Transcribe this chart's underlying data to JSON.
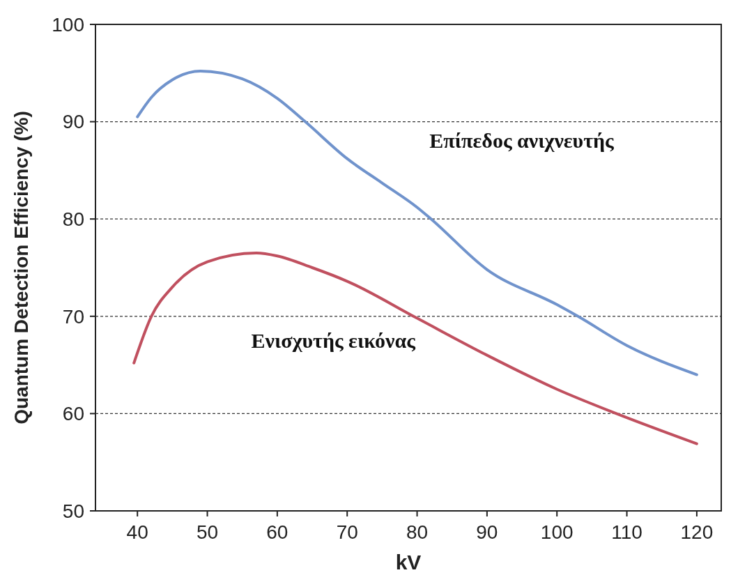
{
  "chart_data": {
    "type": "line",
    "xlabel": "kV",
    "ylabel": "Quantum Detection Efficiency (%)",
    "xlim": [
      34,
      123.5
    ],
    "ylim": [
      50,
      100
    ],
    "xticks": [
      40,
      50,
      60,
      70,
      80,
      90,
      100,
      110,
      120
    ],
    "yticks": [
      50,
      60,
      70,
      80,
      90,
      100
    ],
    "grid": "y",
    "marker": "none",
    "line_style": "solid",
    "series": [
      {
        "name": "Επίπεδος ανιχνευτής",
        "color": "#7093cc",
        "x": [
          40,
          42,
          45,
          49,
          55,
          60,
          64,
          70,
          75,
          80,
          82,
          90,
          100,
          103,
          110,
          120
        ],
        "values": [
          90.5,
          92.5,
          94.3,
          95.2,
          94.4,
          92.4,
          90,
          86.2,
          83.7,
          81.2,
          80,
          74.8,
          71.2,
          70,
          67,
          64
        ]
      },
      {
        "name": "Ενισχυτής εικόνας",
        "color": "#c0505f",
        "x": [
          39.5,
          42,
          45,
          50,
          57,
          60,
          65,
          70,
          80,
          90,
          100,
          108.5,
          120
        ],
        "values": [
          65.2,
          70,
          73,
          75.6,
          76.5,
          76.2,
          75,
          73.6,
          69.8,
          66,
          62.5,
          60,
          56.9
        ]
      }
    ]
  }
}
